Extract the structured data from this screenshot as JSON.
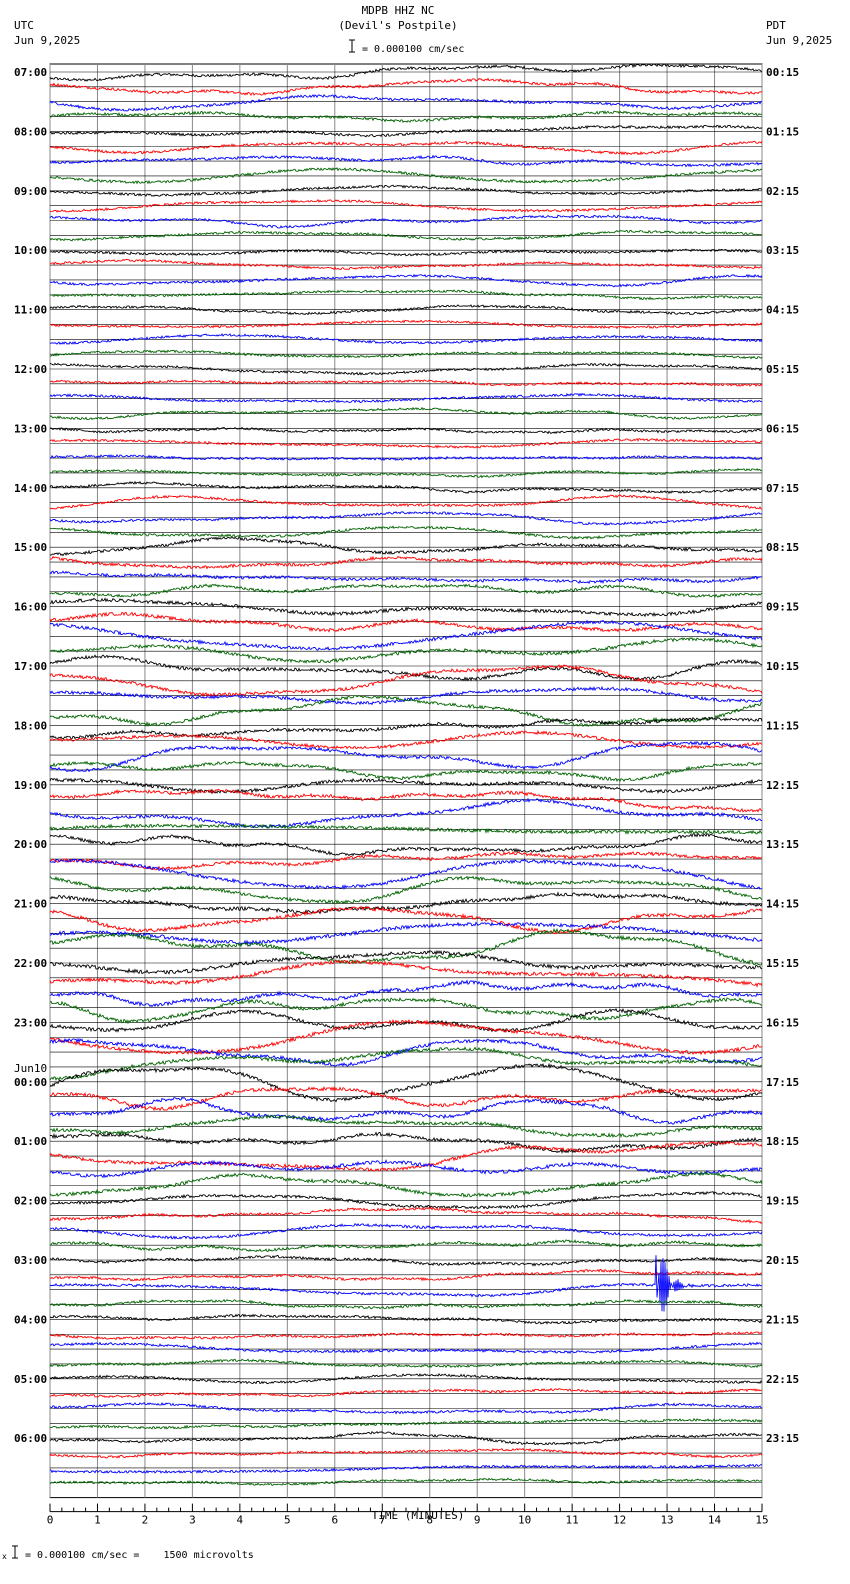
{
  "header": {
    "station": "MDPB HHZ NC",
    "location": "(Devil's Postpile)",
    "scale_label": "= 0.000100 cm/sec",
    "left_tz": "UTC",
    "left_date": "Jun 9,2025",
    "right_tz": "PDT",
    "right_date": "Jun 9,2025"
  },
  "footer": {
    "scale_note": "= 0.000100 cm/sec =    1500 microvolts"
  },
  "chart_data": {
    "type": "line",
    "xlabel": "TIME (MINUTES)",
    "xlim": [
      0,
      15
    ],
    "x_ticks": [
      "0",
      "1",
      "2",
      "3",
      "4",
      "5",
      "6",
      "7",
      "8",
      "9",
      "10",
      "11",
      "12",
      "13",
      "14",
      "15"
    ],
    "minor_ticks_per_minute": 4,
    "trace_colors": [
      "#000000",
      "#ff0000",
      "#0000ff",
      "#006400"
    ],
    "traces_per_hour": 4,
    "utc_hour_labels": [
      "07:00",
      "08:00",
      "09:00",
      "10:00",
      "11:00",
      "12:00",
      "13:00",
      "14:00",
      "15:00",
      "16:00",
      "17:00",
      "18:00",
      "19:00",
      "20:00",
      "21:00",
      "22:00",
      "23:00",
      "00:00",
      "01:00",
      "02:00",
      "03:00",
      "04:00",
      "05:00",
      "06:00"
    ],
    "day_change_label": "Jun10",
    "day_change_index": 17,
    "pdt_hour_labels": [
      "00:15",
      "01:15",
      "02:15",
      "03:15",
      "04:15",
      "05:15",
      "06:15",
      "07:15",
      "08:15",
      "09:15",
      "10:15",
      "11:15",
      "12:15",
      "13:15",
      "14:15",
      "15:15",
      "16:15",
      "17:15",
      "18:15",
      "19:15",
      "20:15",
      "21:15",
      "22:15",
      "23:15"
    ],
    "hourly_activity": [
      1.2,
      1.1,
      0.8,
      0.8,
      0.7,
      0.7,
      0.7,
      0.9,
      1.6,
      2.2,
      2.0,
      1.8,
      2.1,
      2.0,
      2.6,
      2.5,
      2.4,
      2.3,
      2.2,
      1.2,
      1.0,
      0.9,
      0.8,
      0.8
    ],
    "event": {
      "label": "",
      "hour_index": 20,
      "trace": 2,
      "minute": 12.75,
      "amplitude": 5.0
    }
  }
}
